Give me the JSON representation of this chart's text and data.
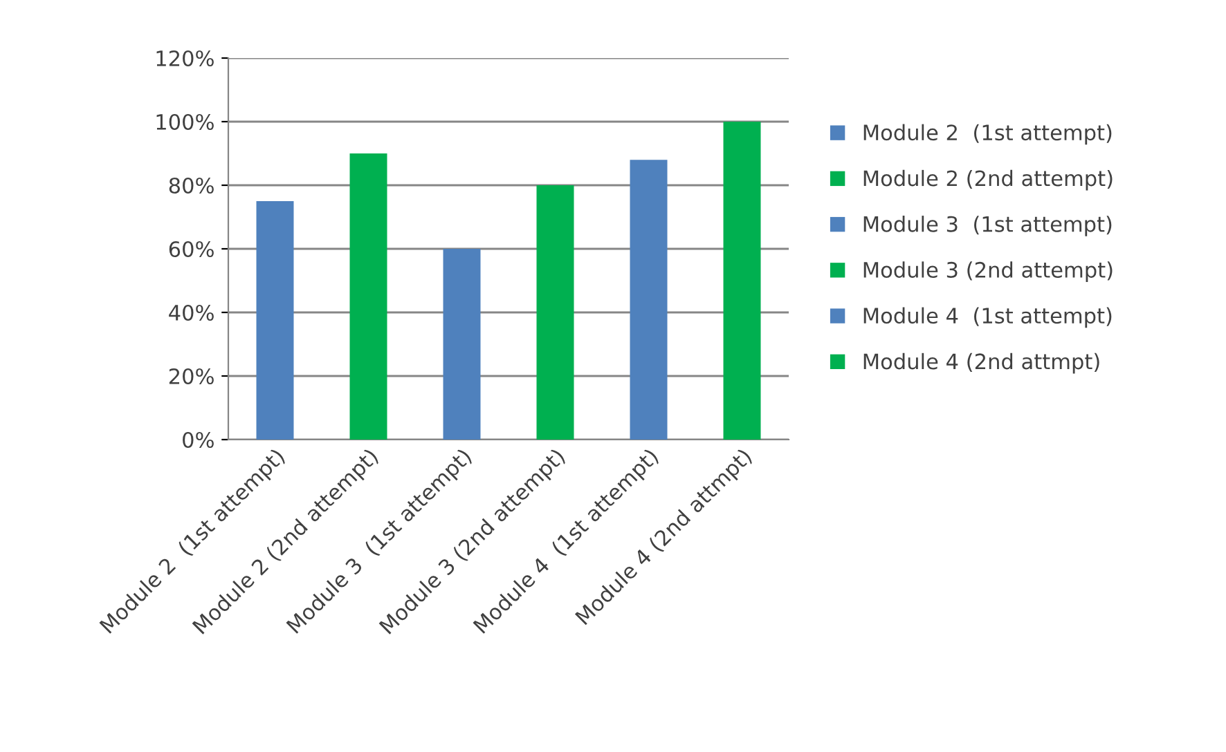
{
  "chart_data": {
    "type": "bar",
    "categories": [
      "Module 2  (1st attempt)",
      "Module 2 (2nd attempt)",
      "Module 3  (1st attempt)",
      "Module 3 (2nd attempt)",
      "Module 4  (1st attempt)",
      "Module 4 (2nd attmpt)"
    ],
    "series": [
      {
        "name": "Module 2  (1st attempt)",
        "color": "#4f81bd",
        "values": [
          75,
          null,
          null,
          null,
          null,
          null
        ]
      },
      {
        "name": "Module 2 (2nd attempt)",
        "color": "#00b050",
        "values": [
          null,
          90,
          null,
          null,
          null,
          null
        ]
      },
      {
        "name": "Module 3  (1st attempt)",
        "color": "#4f81bd",
        "values": [
          null,
          null,
          60,
          null,
          null,
          null
        ]
      },
      {
        "name": "Module 3 (2nd attempt)",
        "color": "#00b050",
        "values": [
          null,
          null,
          null,
          80,
          null,
          null
        ]
      },
      {
        "name": "Module 4  (1st attempt)",
        "color": "#4f81bd",
        "values": [
          null,
          null,
          null,
          null,
          88,
          null
        ]
      },
      {
        "name": "Module 4 (2nd attmpt)",
        "color": "#00b050",
        "values": [
          null,
          null,
          null,
          null,
          null,
          100
        ]
      }
    ],
    "ylim": [
      0,
      120
    ],
    "yticks": [
      {
        "value": 0,
        "label": "0%"
      },
      {
        "value": 20,
        "label": "20%"
      },
      {
        "value": 40,
        "label": "40%"
      },
      {
        "value": 60,
        "label": "60%"
      },
      {
        "value": 80,
        "label": "80%"
      },
      {
        "value": 100,
        "label": "100%"
      },
      {
        "value": 120,
        "label": "120%"
      }
    ],
    "grid": "y",
    "legend": "right"
  }
}
